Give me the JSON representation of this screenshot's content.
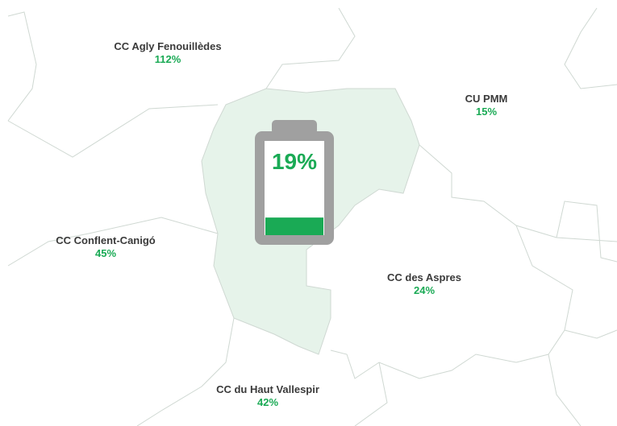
{
  "regions": [
    {
      "name": "CC Agly Fenouillèdes",
      "value": "112%"
    },
    {
      "name": "CU PMM",
      "value": "15%"
    },
    {
      "name": "CC Conflent-Canigó",
      "value": "45%"
    },
    {
      "name": "CC des Aspres",
      "value": "24%"
    },
    {
      "name": "CC du Haut Vallespir",
      "value": "42%"
    }
  ],
  "battery": {
    "value": 19,
    "label": "19%"
  }
}
